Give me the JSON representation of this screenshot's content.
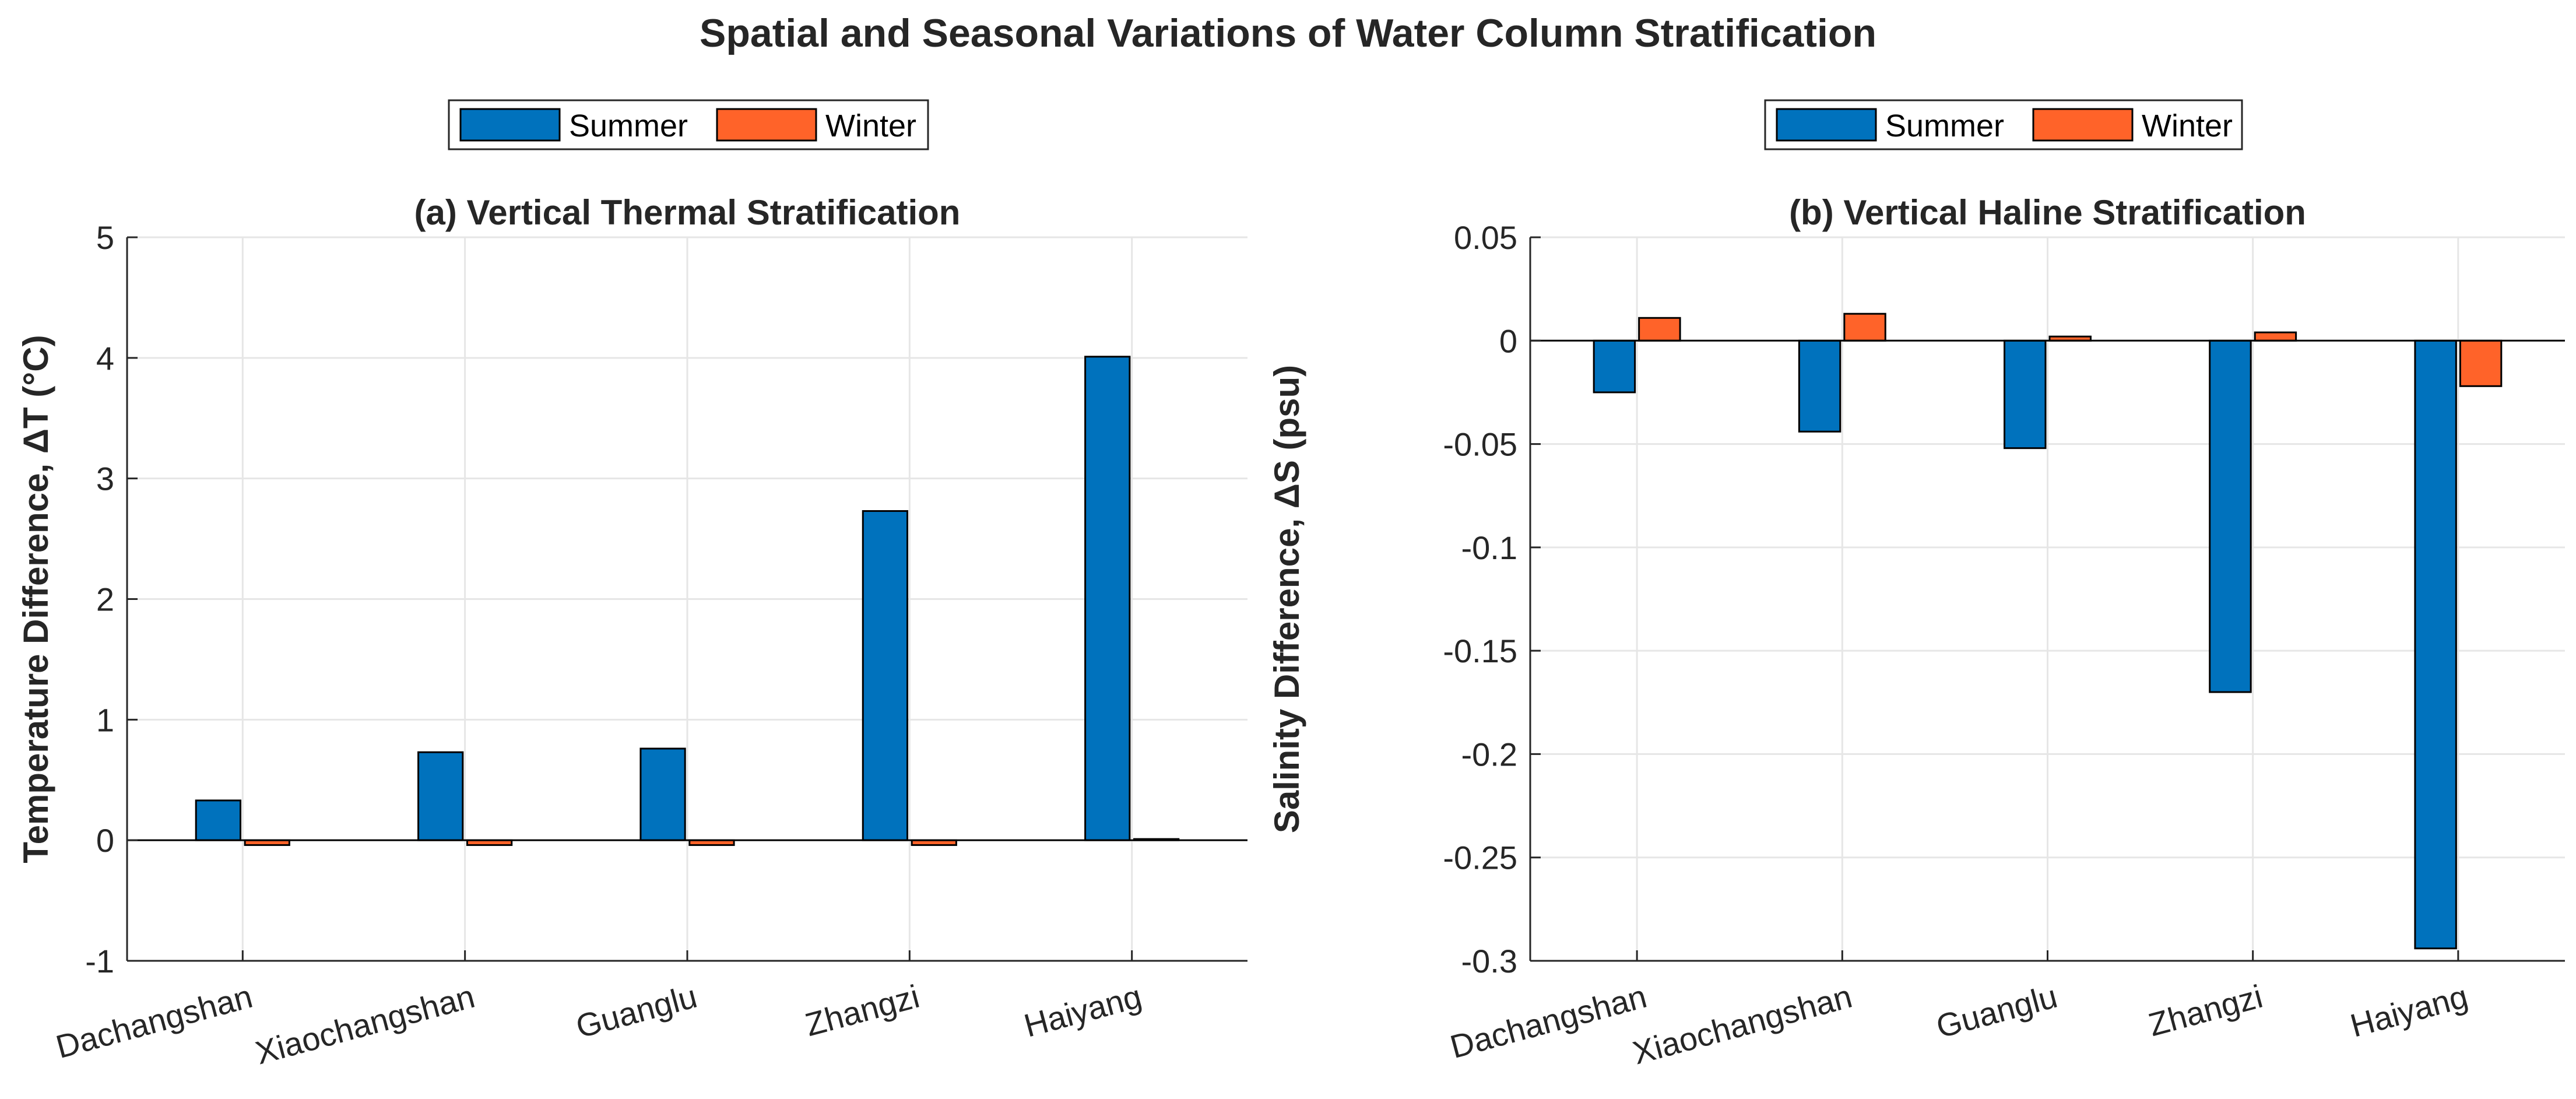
{
  "figure": {
    "title": "Spatial and Seasonal Variations of Water Column Stratification"
  },
  "colors": {
    "summer": "#0072BD",
    "winter": "#FF6329",
    "axis": "#262626",
    "grid": "#e6e6e6"
  },
  "chart_data": [
    {
      "type": "bar",
      "title": "(a) Vertical Thermal Stratification",
      "xlabel": "",
      "ylabel": "Temperature Difference, ΔT (°C)",
      "categories": [
        "Dachangshan",
        "Xiaochangshan",
        "Guanglu",
        "Zhangzi",
        "Haiyang"
      ],
      "series": [
        {
          "name": "Summer",
          "values": [
            0.33,
            0.73,
            0.76,
            2.73,
            4.01
          ]
        },
        {
          "name": "Winter",
          "values": [
            -0.04,
            -0.04,
            -0.04,
            -0.04,
            0.01
          ]
        }
      ],
      "ylim": [
        -1,
        5
      ],
      "yticks": [
        -1,
        0,
        1,
        2,
        3,
        4,
        5
      ],
      "ytick_labels": [
        "-1",
        "0",
        "1",
        "2",
        "3",
        "4",
        "5"
      ],
      "grid": true,
      "legend": "top, outside, horizontal"
    },
    {
      "type": "bar",
      "title": "(b) Vertical Haline Stratification",
      "xlabel": "",
      "ylabel": "Salinity Difference, ΔS (psu)",
      "categories": [
        "Dachangshan",
        "Xiaochangshan",
        "Guanglu",
        "Zhangzi",
        "Haiyang"
      ],
      "series": [
        {
          "name": "Summer",
          "values": [
            -0.025,
            -0.044,
            -0.052,
            -0.17,
            -0.294
          ]
        },
        {
          "name": "Winter",
          "values": [
            0.011,
            0.013,
            0.002,
            0.004,
            -0.022
          ]
        }
      ],
      "ylim": [
        -0.3,
        0.05
      ],
      "yticks": [
        -0.3,
        -0.25,
        -0.2,
        -0.15,
        -0.1,
        -0.05,
        0,
        0.05
      ],
      "ytick_labels": [
        "-0.3",
        "-0.25",
        "-0.2",
        "-0.15",
        "-0.1",
        "-0.05",
        "0",
        "0.05"
      ],
      "grid": true,
      "legend": "top, outside, horizontal"
    }
  ]
}
